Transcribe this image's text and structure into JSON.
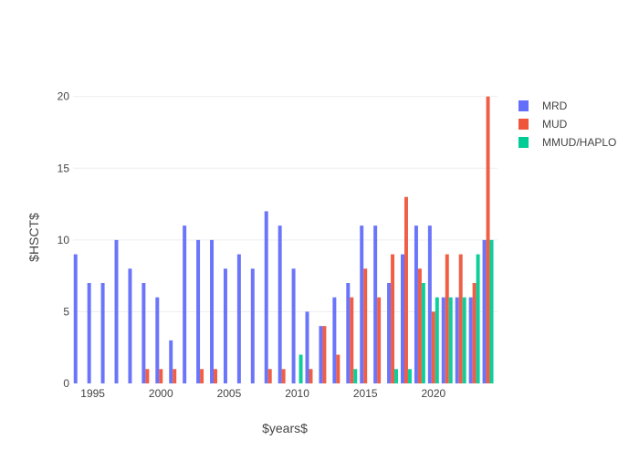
{
  "chart_data": {
    "type": "bar",
    "barmode": "group",
    "xlabel": "$years$",
    "ylabel": "$HSCT$",
    "x": [
      1994,
      1995,
      1996,
      1997,
      1998,
      1999,
      2000,
      2001,
      2002,
      2003,
      2004,
      2005,
      2006,
      2007,
      2008,
      2009,
      2010,
      2011,
      2012,
      2013,
      2014,
      2015,
      2016,
      2017,
      2018,
      2019,
      2020,
      2021,
      2022,
      2023,
      2024
    ],
    "xlim": [
      1993.55,
      2024.7
    ],
    "ylim": [
      0,
      21
    ],
    "x_ticks": [
      1995,
      2000,
      2005,
      2010,
      2015,
      2020
    ],
    "y_ticks": [
      0,
      5,
      10,
      15,
      20
    ],
    "grid": "horizontal",
    "legend_position": "top-right",
    "series": [
      {
        "name": "MRD",
        "color": "#636efa",
        "values": [
          9,
          7,
          7,
          10,
          8,
          7,
          6,
          3,
          11,
          10,
          10,
          8,
          9,
          8,
          12,
          11,
          8,
          5,
          4,
          6,
          7,
          11,
          11,
          7,
          9,
          11,
          11,
          6,
          6,
          6,
          10
        ]
      },
      {
        "name": "MUD",
        "color": "#ef553b",
        "values": [
          0,
          0,
          0,
          0,
          0,
          1,
          1,
          1,
          0,
          1,
          1,
          0,
          0,
          0,
          1,
          1,
          0,
          1,
          4,
          2,
          6,
          8,
          6,
          9,
          13,
          8,
          5,
          9,
          9,
          7,
          20
        ]
      },
      {
        "name": "MMUD/HAPLO",
        "color": "#00cc96",
        "values": [
          0,
          0,
          0,
          0,
          0,
          0,
          0,
          0,
          0,
          0,
          0,
          0,
          0,
          0,
          0,
          0,
          2,
          0,
          0,
          0,
          1,
          0,
          0,
          1,
          1,
          7,
          6,
          6,
          6,
          9,
          10
        ]
      }
    ]
  }
}
